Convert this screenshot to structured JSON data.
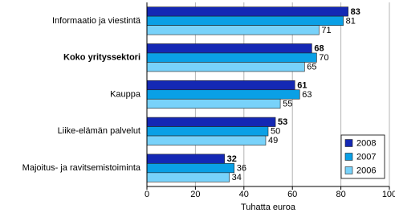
{
  "chart_data": {
    "type": "bar",
    "orientation": "horizontal",
    "categories": [
      "Informaatio ja viestintä",
      "Koko yrityssektori",
      "Kauppa",
      "Liike-elämän palvelut",
      "Majoitus- ja ravitsemistoiminta"
    ],
    "series": [
      {
        "name": "2008",
        "color": "#1428b4",
        "values": [
          83,
          68,
          61,
          53,
          32
        ]
      },
      {
        "name": "2007",
        "color": "#0aa0e6",
        "values": [
          81,
          70,
          63,
          50,
          36
        ]
      },
      {
        "name": "2006",
        "color": "#78d2fa",
        "values": [
          71,
          65,
          55,
          49,
          34
        ]
      }
    ],
    "xlabel": "Tuhatta euroa",
    "xlim": [
      0,
      100
    ],
    "xticks": [
      0,
      20,
      40,
      60,
      80,
      100
    ],
    "grid": true,
    "legend": "lower right"
  }
}
